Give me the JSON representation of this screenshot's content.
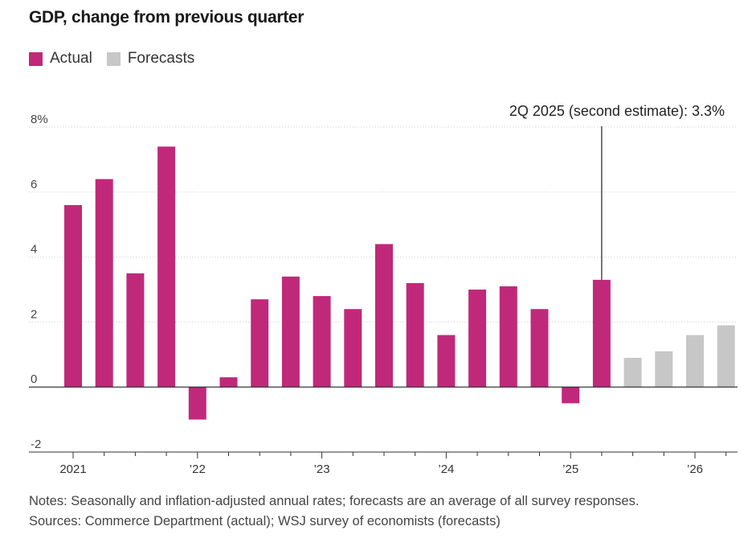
{
  "chart_data": {
    "type": "bar",
    "title": "GDP, change from previous quarter",
    "legend": [
      {
        "name": "Actual",
        "color": "#c0297a"
      },
      {
        "name": "Forecasts",
        "color": "#c7c7c7"
      }
    ],
    "legend_placement": "top-left",
    "x_ticks": [
      "2021",
      "’22",
      "’23",
      "’24",
      "’25",
      "’26"
    ],
    "y_ticks": [
      "8%",
      "6",
      "4",
      "2",
      "0",
      "-2"
    ],
    "ylim": [
      -2,
      8
    ],
    "grid": true,
    "series": [
      {
        "name": "Actual",
        "values": [
          5.6,
          6.4,
          3.5,
          7.4,
          -1.0,
          0.3,
          2.7,
          3.4,
          2.8,
          2.4,
          4.4,
          3.2,
          1.6,
          3.0,
          3.1,
          2.4,
          -0.5,
          3.3
        ]
      },
      {
        "name": "Forecasts",
        "values": [
          0.9,
          1.1,
          1.6,
          1.9
        ]
      }
    ],
    "annotation": "2Q 2025 (second estimate): 3.3%"
  },
  "notes": {
    "line1": "Notes: Seasonally and inflation-adjusted annual rates; forecasts are an average of all survey responses.",
    "line2": "Sources: Commerce Department (actual); WSJ survey of economists (forecasts)"
  }
}
